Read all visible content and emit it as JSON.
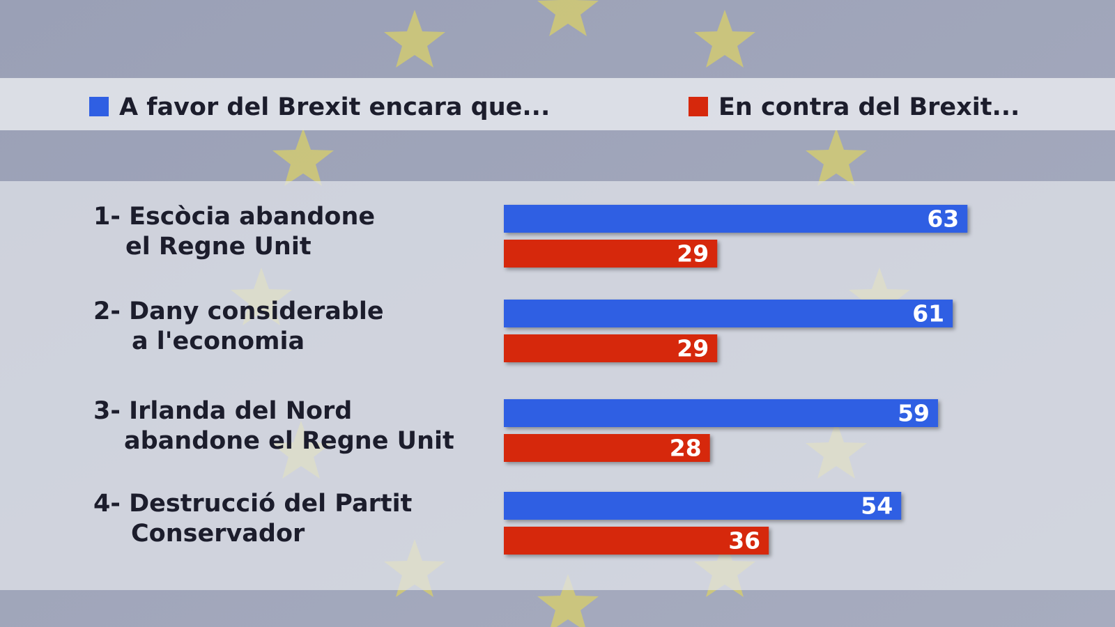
{
  "chart_data": {
    "type": "bar",
    "orientation": "horizontal",
    "categories": [
      [
        "1- Escòcia abandone",
        "el Regne Unit"
      ],
      [
        "2- Dany considerable",
        "a l'economia"
      ],
      [
        "3- Irlanda del Nord",
        "abandone el Regne Unit"
      ],
      [
        "4- Destrucció del Partit",
        "Conservador"
      ]
    ],
    "series": [
      {
        "name": "A favor del Brexit encara que...",
        "color": "#2f5fe3",
        "values": [
          63,
          61,
          59,
          54
        ]
      },
      {
        "name": "En contra del Brexit...",
        "color": "#d6280c",
        "values": [
          29,
          29,
          28,
          36
        ]
      }
    ]
  }
}
